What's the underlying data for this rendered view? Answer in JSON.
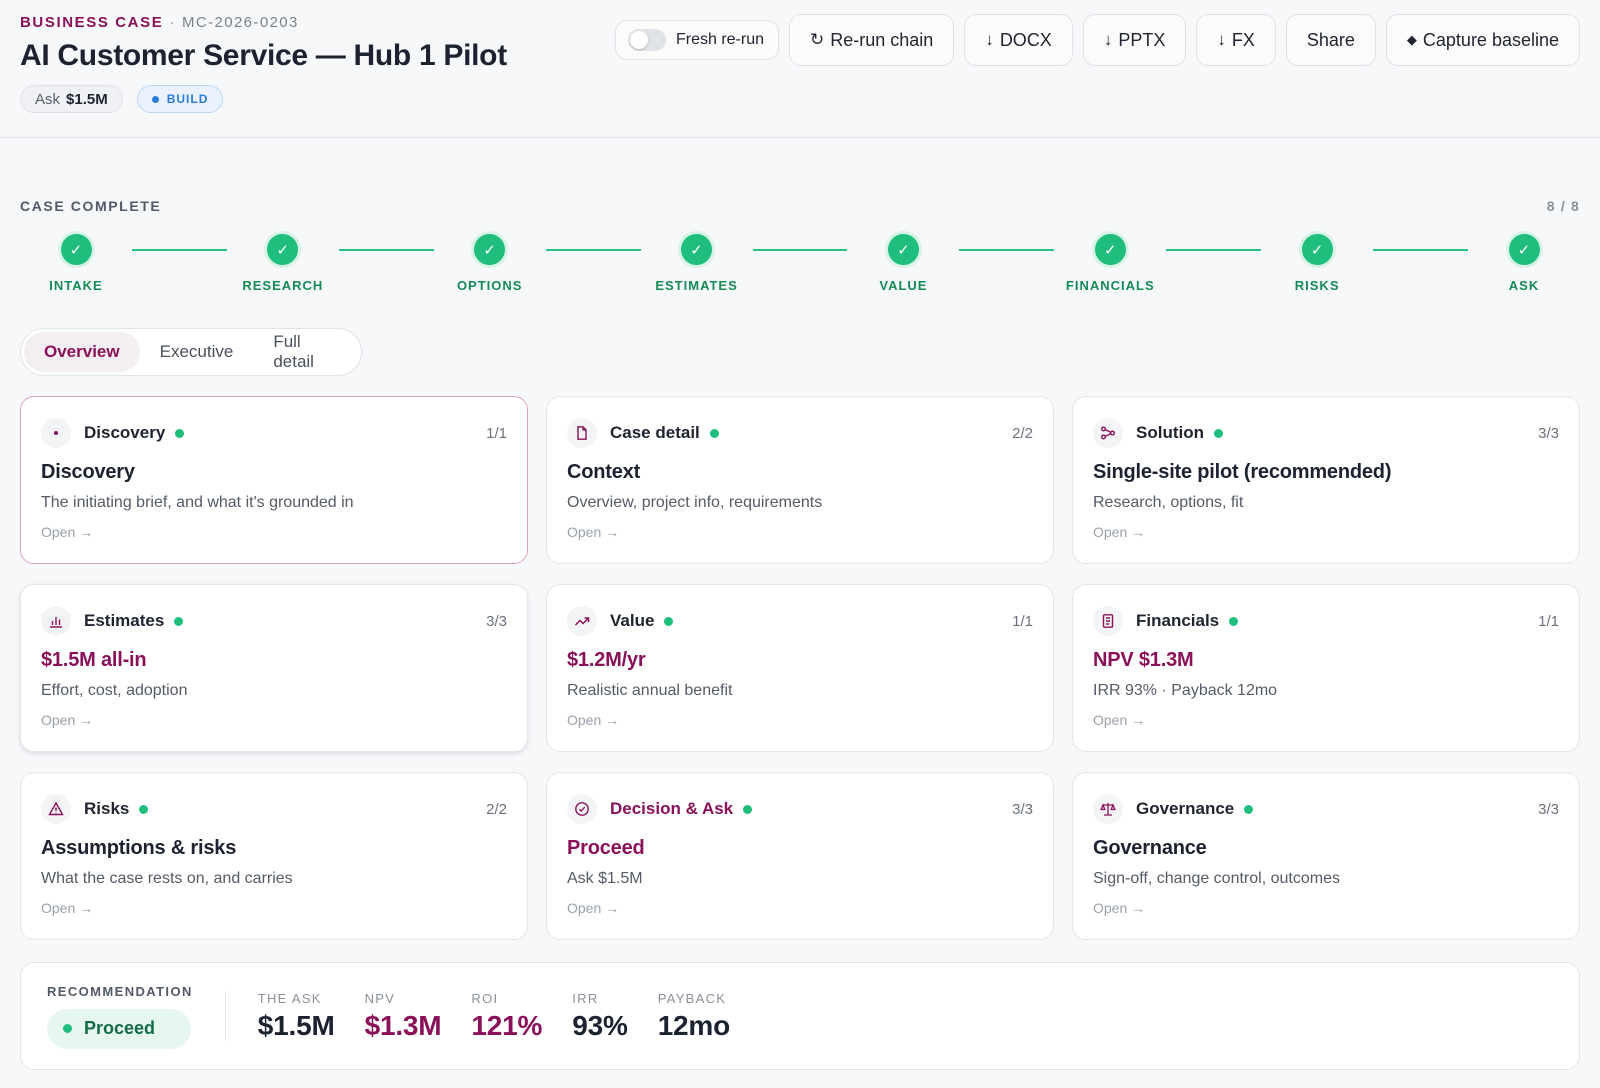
{
  "header": {
    "eyebrow": "BUSINESS CASE",
    "separator": "·",
    "code": "MC-2026-0203",
    "title": "AI Customer Service — Hub 1 Pilot",
    "ask_label": "Ask",
    "ask_value": "$1.5M",
    "stage_badge": "BUILD"
  },
  "actions": {
    "fresh_rerun_label": "Fresh re-run",
    "fresh_rerun_on": false,
    "rerun_chain": "Re-run chain",
    "docx": "DOCX",
    "pptx": "PPTX",
    "fx": "FX",
    "share": "Share",
    "capture_baseline": "Capture baseline"
  },
  "progress": {
    "label": "CASE COMPLETE",
    "count": "8 / 8",
    "completed": 8,
    "total": 8,
    "steps": [
      "INTAKE",
      "RESEARCH",
      "OPTIONS",
      "ESTIMATES",
      "VALUE",
      "FINANCIALS",
      "RISKS",
      "ASK"
    ]
  },
  "tabs": {
    "items": [
      "Overview",
      "Executive",
      "Full detail"
    ],
    "active": "Overview"
  },
  "cards": [
    {
      "category": "Discovery",
      "icon": "dot-icon",
      "fraction": "1/1",
      "title": "Discovery",
      "subtitle": "The initiating brief, and what it's grounded in",
      "open": "Open →"
    },
    {
      "category": "Case detail",
      "icon": "document-icon",
      "fraction": "2/2",
      "title": "Context",
      "subtitle": "Overview, project info, requirements",
      "open": "Open →"
    },
    {
      "category": "Solution",
      "icon": "branch-icon",
      "fraction": "3/3",
      "title": "Single-site pilot (recommended)",
      "subtitle": "Research, options, fit",
      "open": "Open →"
    },
    {
      "category": "Estimates",
      "icon": "bar-chart-icon",
      "fraction": "3/3",
      "title": "$1.5M all-in",
      "subtitle": "Effort, cost, adoption",
      "open": "Open →"
    },
    {
      "category": "Value",
      "icon": "trend-up-icon",
      "fraction": "1/1",
      "title": "$1.2M/yr",
      "subtitle": "Realistic annual benefit",
      "open": "Open →"
    },
    {
      "category": "Financials",
      "icon": "ledger-icon",
      "fraction": "1/1",
      "title": "NPV $1.3M",
      "subtitle": "IRR 93% · Payback 12mo",
      "open": "Open →"
    },
    {
      "category": "Risks",
      "icon": "warning-icon",
      "fraction": "2/2",
      "title": "Assumptions & risks",
      "subtitle": "What the case rests on, and carries",
      "open": "Open →"
    },
    {
      "category": "Decision & Ask",
      "icon": "check-circle-icon",
      "fraction": "3/3",
      "title": "Proceed",
      "subtitle": "Ask $1.5M",
      "open": "Open →"
    },
    {
      "category": "Governance",
      "icon": "scales-icon",
      "fraction": "3/3",
      "title": "Governance",
      "subtitle": "Sign-off, change control, outcomes",
      "open": "Open →"
    }
  ],
  "summary": {
    "recommendation_label": "RECOMMENDATION",
    "recommendation": "Proceed",
    "metrics": [
      {
        "label": "THE ASK",
        "value": "$1.5M"
      },
      {
        "label": "NPV",
        "value": "$1.3M"
      },
      {
        "label": "ROI",
        "value": "121%"
      },
      {
        "label": "IRR",
        "value": "93%"
      },
      {
        "label": "PAYBACK",
        "value": "12mo"
      }
    ]
  },
  "colors": {
    "accent": "#8a1158",
    "success": "#1fbe7c",
    "info": "#2a7ad6"
  }
}
